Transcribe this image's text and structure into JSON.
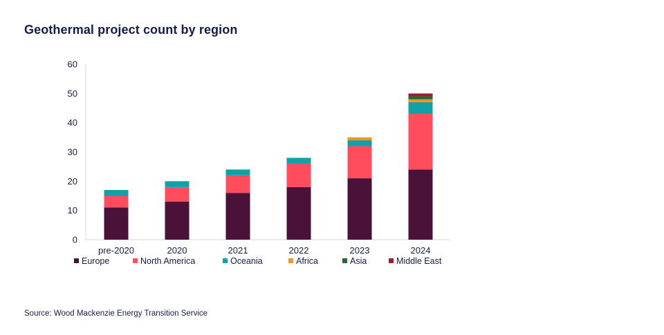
{
  "chart_data": {
    "type": "bar",
    "stacked": true,
    "title": "Geothermal project count by region",
    "categories": [
      "pre-2020",
      "2020",
      "2021",
      "2022",
      "2023",
      "2024"
    ],
    "ylim": [
      0,
      60
    ],
    "yticks": [
      0,
      10,
      20,
      30,
      40,
      50,
      60
    ],
    "grid": false,
    "legend_position": "bottom",
    "series": [
      {
        "name": "Europe",
        "color": "#4B1239",
        "values": [
          11,
          13,
          16,
          18,
          21,
          24
        ]
      },
      {
        "name": "North America",
        "color": "#FF4D5E",
        "values": [
          4,
          5,
          6,
          8,
          11,
          19
        ]
      },
      {
        "name": "Oceania",
        "color": "#11A0A8",
        "values": [
          2,
          2,
          2,
          2,
          2,
          4
        ]
      },
      {
        "name": "Africa",
        "color": "#F7941D",
        "values": [
          0,
          0,
          0,
          0,
          1,
          1
        ]
      },
      {
        "name": "Asia",
        "color": "#1E6B35",
        "values": [
          0,
          0,
          0,
          0,
          0,
          1
        ]
      },
      {
        "name": "Middle East",
        "color": "#9E1B32",
        "values": [
          0,
          0,
          0,
          0,
          0,
          1
        ]
      }
    ]
  },
  "source": "Source: Wood Mackenzie Energy Transition Service"
}
